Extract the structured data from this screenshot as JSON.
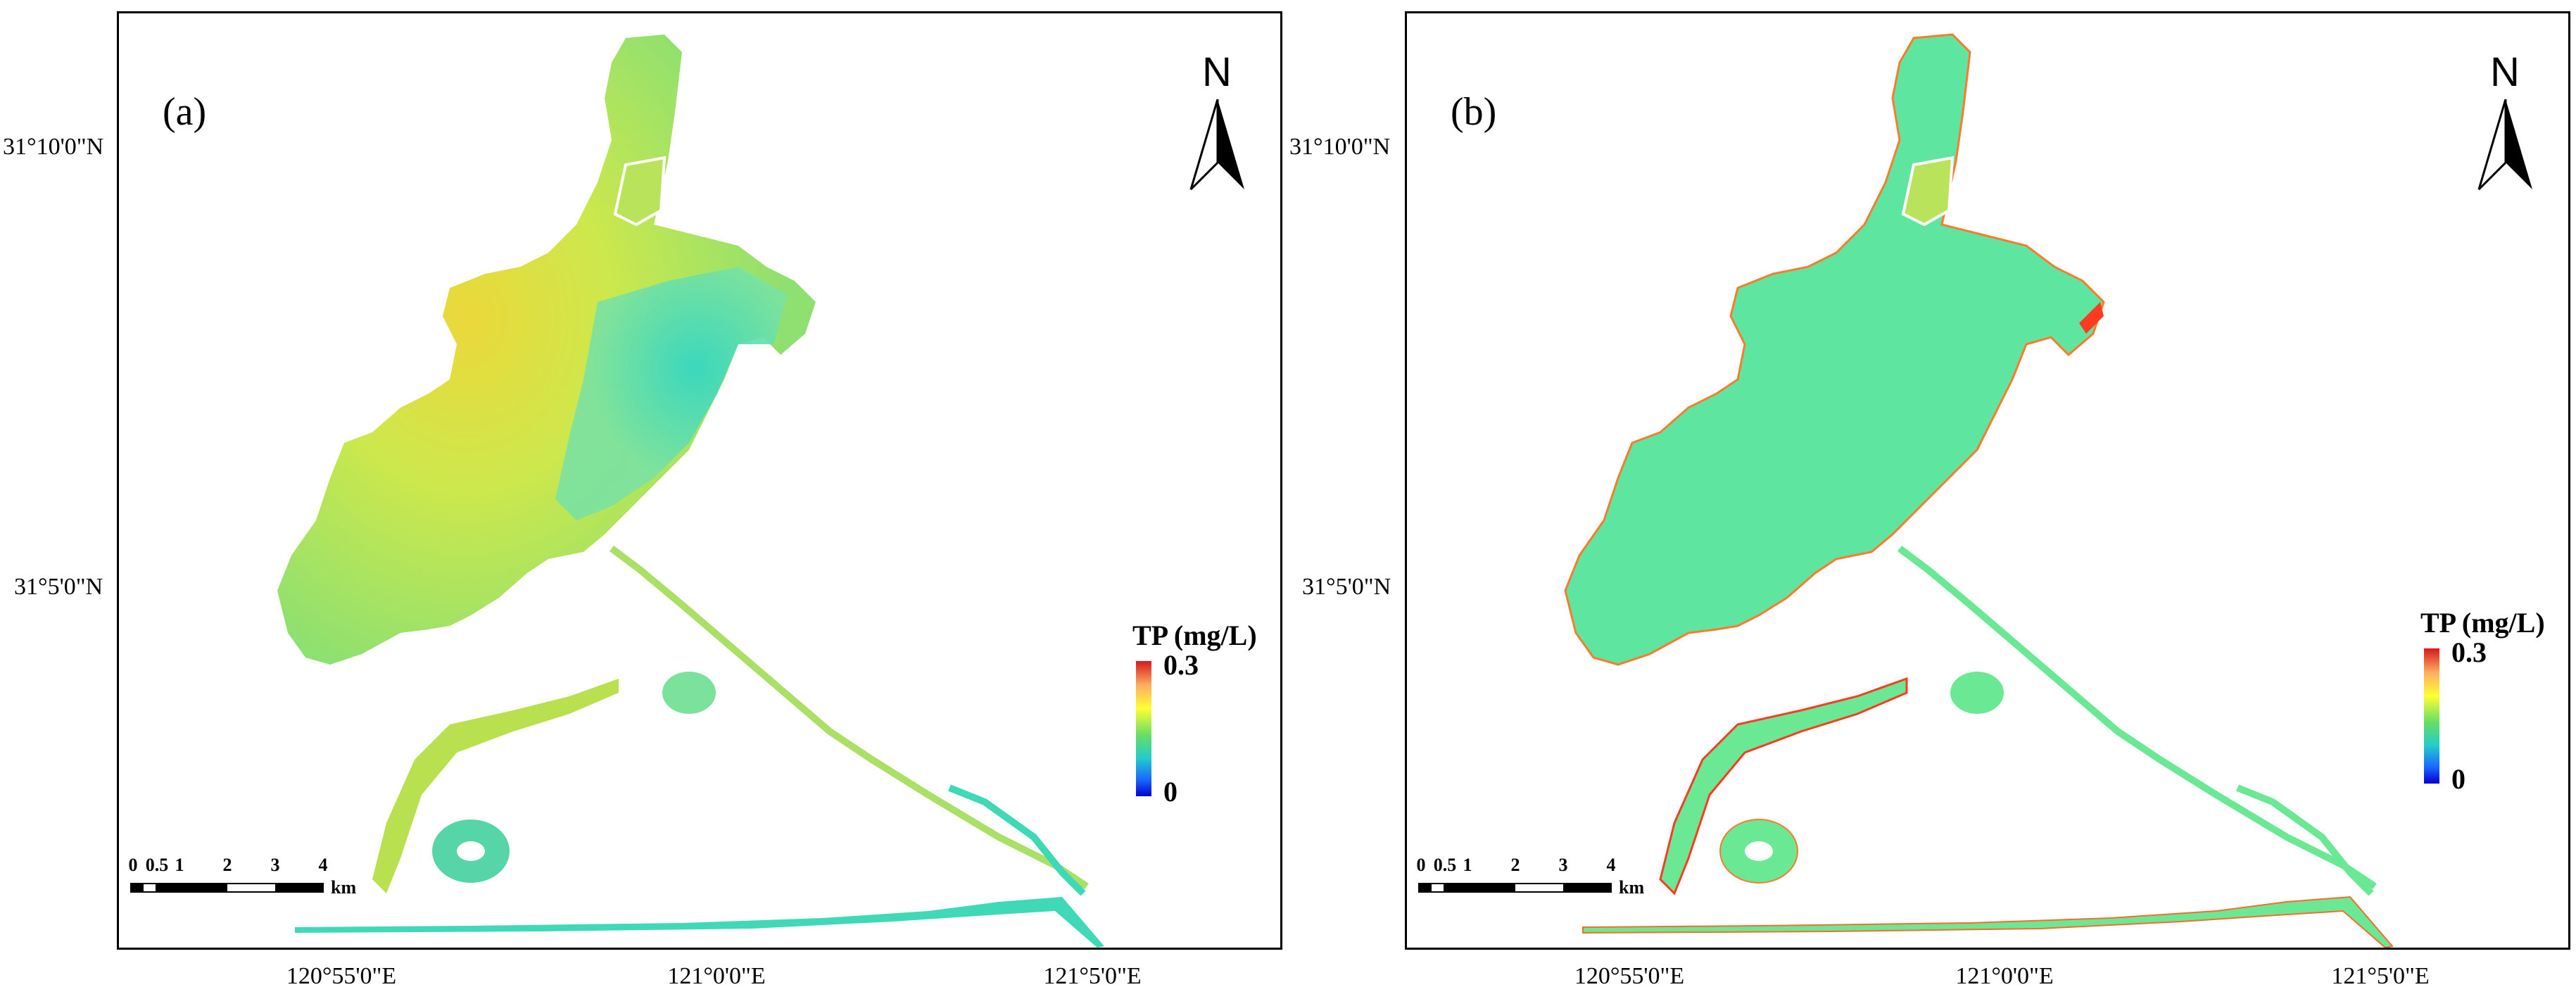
{
  "panels": [
    {
      "label": "(a)",
      "north_letter": "N",
      "legend": {
        "title": "TP (mg/L)",
        "max": "0.3",
        "min": "0"
      },
      "scale": {
        "ticks": [
          "0",
          "0.5",
          "1",
          "2",
          "3",
          "4"
        ],
        "unit": "km"
      },
      "colors": {
        "dominant": "#d6e84a",
        "secondary": "#3fd9b8",
        "hotspot": "#f0d020"
      }
    },
    {
      "label": "(b)",
      "north_letter": "N",
      "legend": {
        "title": "TP (mg/L)",
        "max": "0.3",
        "min": "0"
      },
      "scale": {
        "ticks": [
          "0",
          "0.5",
          "1",
          "2",
          "3",
          "4"
        ],
        "unit": "km"
      },
      "colors": {
        "dominant": "#5ee6a0",
        "secondary": "#6be894",
        "edge": "#ff3b1f"
      }
    }
  ],
  "axes": {
    "lat": [
      "31°10'0\"N",
      "31°5'0\"N"
    ],
    "lon": [
      "120°55'0\"E",
      "121°0'0\"E",
      "121°5'0\"E"
    ]
  },
  "colorbar": {
    "low": "#0000cc",
    "high": "#d7191c"
  }
}
